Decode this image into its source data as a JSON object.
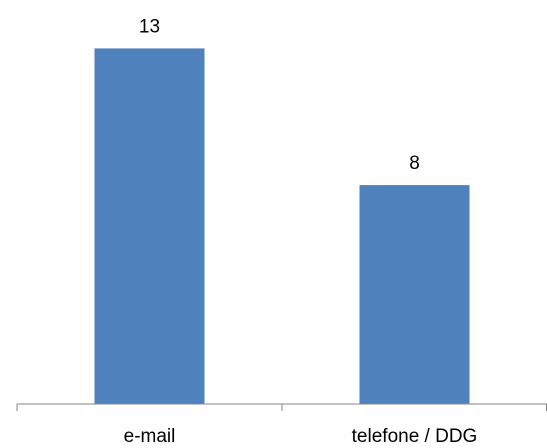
{
  "chart_data": {
    "type": "bar",
    "categories": [
      "e-mail",
      "telefone / DDG"
    ],
    "values": [
      13,
      8
    ],
    "ylim": [
      0,
      14
    ],
    "title": "",
    "xlabel": "",
    "ylabel": "",
    "grid": false,
    "legend": "none",
    "data_labels": true,
    "bar_color": "#4F81BD",
    "axis_color": "#868686"
  }
}
